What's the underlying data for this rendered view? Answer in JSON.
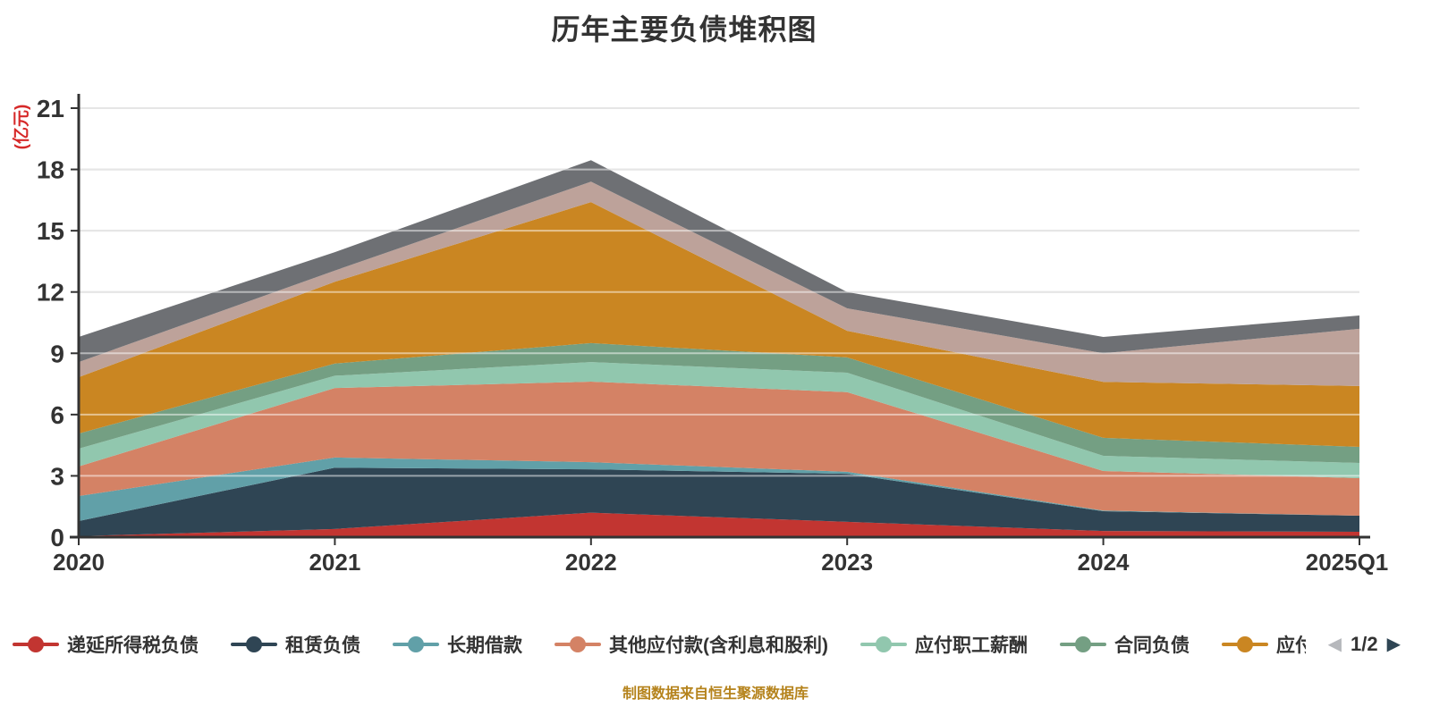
{
  "title": "历年主要负债堆积图",
  "footer": "制图数据来自恒生聚源数据库",
  "colors": {
    "background": "#ffffff",
    "title_color": "#333333",
    "axis_label_color": "#333333",
    "axis_line_color": "#333333",
    "grid_color": "#cccccc",
    "y_name_color": "#d62929",
    "footer_color": "#b5831c",
    "pager_prev_color": "#b6b8bc",
    "pager_next_color": "#2f4554"
  },
  "legend": {
    "pager": {
      "text": "1/2",
      "prev_icon": "◀",
      "next_icon": "▶",
      "prev_enabled": false,
      "next_enabled": true
    }
  },
  "chart_data": {
    "type": "area",
    "stacked": true,
    "title": "历年主要负债堆积图",
    "categories": [
      "2020",
      "2021",
      "2022",
      "2023",
      "2024",
      "2025Q1"
    ],
    "xlabel": "",
    "ylabel": "(亿元)",
    "ylim": [
      0,
      21
    ],
    "y_ticks": [
      0,
      3,
      6,
      9,
      12,
      15,
      18,
      21
    ],
    "grid": true,
    "legend_position": "bottom",
    "series": [
      {
        "name": "递延所得税负债",
        "color": "#c23531",
        "legend_visible": true,
        "legend_truncated": false,
        "values": [
          0.05,
          0.4,
          1.2,
          0.75,
          0.3,
          0.26
        ]
      },
      {
        "name": "租赁负债",
        "color": "#2f4554",
        "legend_visible": true,
        "legend_truncated": false,
        "values": [
          0.74,
          3.0,
          2.12,
          2.35,
          0.97,
          0.79
        ]
      },
      {
        "name": "长期借款",
        "color": "#61a0a8",
        "legend_visible": true,
        "legend_truncated": false,
        "values": [
          1.22,
          0.5,
          0.35,
          0.1,
          0.03,
          0.0
        ]
      },
      {
        "name": "其他应付款(含利息和股利)",
        "color": "#d48265",
        "legend_visible": true,
        "legend_truncated": false,
        "values": [
          1.45,
          3.4,
          3.94,
          3.9,
          1.94,
          1.84
        ]
      },
      {
        "name": "应付职工薪酬",
        "color": "#91c7ae",
        "legend_visible": true,
        "legend_truncated": false,
        "values": [
          0.87,
          0.6,
          0.96,
          0.95,
          0.74,
          0.74
        ]
      },
      {
        "name": "合同负债",
        "color": "#749f83",
        "legend_visible": true,
        "legend_truncated": false,
        "values": [
          0.74,
          0.6,
          0.93,
          0.75,
          0.88,
          0.79
        ]
      },
      {
        "name": "应付票据及应付账款",
        "color": "#ca8622",
        "legend_visible": true,
        "legend_truncated": true,
        "values": [
          2.76,
          4.0,
          6.9,
          1.3,
          2.74,
          2.98
        ]
      },
      {
        "name": "",
        "color": "#bda29a",
        "legend_visible": false,
        "legend_truncated": false,
        "values": [
          0.74,
          0.55,
          1.0,
          1.1,
          1.4,
          2.8
        ]
      },
      {
        "name": "",
        "color": "#6e7074",
        "legend_visible": false,
        "legend_truncated": false,
        "values": [
          1.23,
          0.9,
          1.05,
          0.8,
          0.8,
          0.65
        ]
      }
    ]
  }
}
